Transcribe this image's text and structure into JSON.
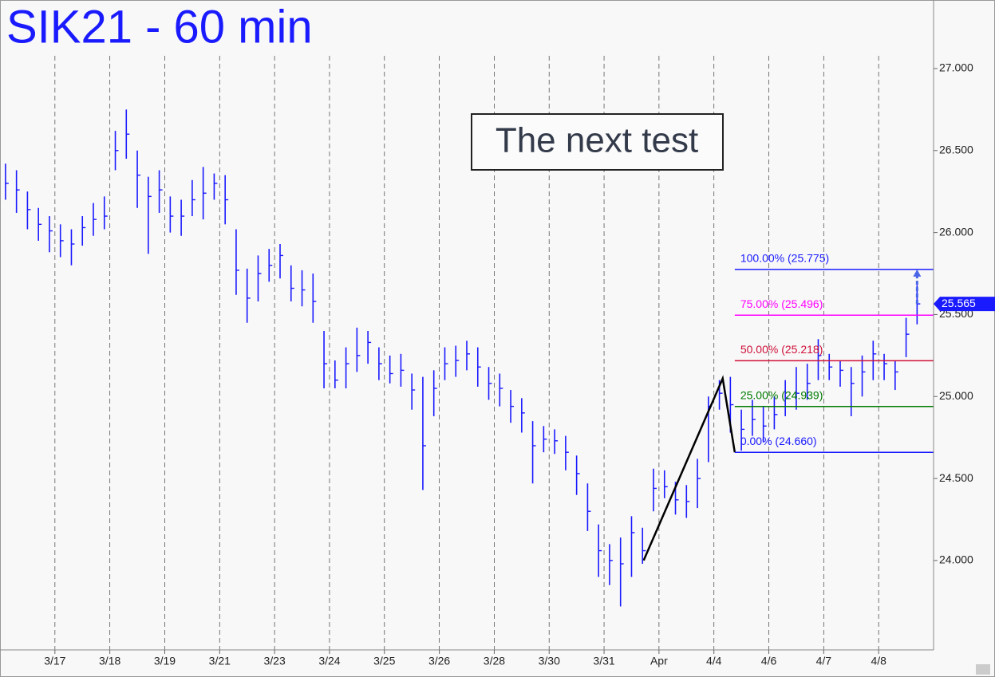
{
  "chart_data": {
    "type": "ohlc",
    "title": "SIK21 - 60 min",
    "annotation": "The next test",
    "color": "#1a1aff",
    "grid": "x",
    "xlim": [
      0,
      85
    ],
    "xticks": [
      {
        "value": 5,
        "label": "3/17"
      },
      {
        "value": 10,
        "label": "3/18"
      },
      {
        "value": 15,
        "label": "3/19"
      },
      {
        "value": 20,
        "label": "3/21"
      },
      {
        "value": 25,
        "label": "3/23"
      },
      {
        "value": 30,
        "label": "3/24"
      },
      {
        "value": 35,
        "label": "3/25"
      },
      {
        "value": 40,
        "label": "3/26"
      },
      {
        "value": 45,
        "label": "3/28"
      },
      {
        "value": 50,
        "label": "3/30"
      },
      {
        "value": 55,
        "label": "3/31"
      },
      {
        "value": 60,
        "label": "Apr"
      },
      {
        "value": 65,
        "label": "4/4"
      },
      {
        "value": 70,
        "label": "4/6"
      },
      {
        "value": 75,
        "label": "4/7"
      },
      {
        "value": 80,
        "label": "4/8"
      }
    ],
    "ylim": [
      23.455,
      27.418
    ],
    "yticks": [
      {
        "value": 24,
        "label": "24.000"
      },
      {
        "value": 24.5,
        "label": "24.500"
      },
      {
        "value": 25,
        "label": "25.000"
      },
      {
        "value": 25.5,
        "label": "25.500"
      },
      {
        "value": 26,
        "label": "26.000"
      },
      {
        "value": 26.5,
        "label": "26.500"
      },
      {
        "value": 27,
        "label": "27.000"
      }
    ],
    "close": [
      26.3,
      26.26,
      26.14,
      26.05,
      26.01,
      25.95,
      25.93,
      26.03,
      26.08,
      26.1,
      26.5,
      26.6,
      26.35,
      26.22,
      26.26,
      26.1,
      26.1,
      26.2,
      26.24,
      26.3,
      26.2,
      25.77,
      25.6,
      25.75,
      25.8,
      25.86,
      25.66,
      25.65,
      25.58,
      25.2,
      25.1,
      25.2,
      25.25,
      25.33,
      25.2,
      25.14,
      25.16,
      25.04,
      24.7,
      25.05,
      25.2,
      25.22,
      25.26,
      25.18,
      25.08,
      25.05,
      24.94,
      24.9,
      24.7,
      24.74,
      24.73,
      24.66,
      24.53,
      24.3,
      24.06,
      24.0,
      23.98,
      24.17,
      24.06,
      24.44,
      24.45,
      24.37,
      24.36,
      24.5,
      24.94,
      25.02,
      24.95,
      24.8,
      24.86,
      24.82,
      24.89,
      24.99,
      25.02,
      25.08,
      25.25,
      25.18,
      25.16,
      25.08,
      25.15,
      25.26,
      25.2,
      25.15,
      25.38,
      25.565
    ],
    "high": [
      26.42,
      26.38,
      26.25,
      26.15,
      26.1,
      26.05,
      26.02,
      26.1,
      26.18,
      26.22,
      26.62,
      26.75,
      26.5,
      26.34,
      26.38,
      26.22,
      26.2,
      26.32,
      26.4,
      26.36,
      26.35,
      26.02,
      25.78,
      25.86,
      25.9,
      25.93,
      25.8,
      25.77,
      25.75,
      25.4,
      25.22,
      25.3,
      25.42,
      25.4,
      25.3,
      25.25,
      25.26,
      25.14,
      25.12,
      25.16,
      25.3,
      25.31,
      25.34,
      25.3,
      25.18,
      25.14,
      25.04,
      24.99,
      24.85,
      24.82,
      24.8,
      24.76,
      24.64,
      24.47,
      24.22,
      24.1,
      24.14,
      24.27,
      24.2,
      24.56,
      24.55,
      24.48,
      24.46,
      24.62,
      25.0,
      25.1,
      25.12,
      24.92,
      24.98,
      24.94,
      25.0,
      25.1,
      25.18,
      25.2,
      25.35,
      25.26,
      25.22,
      25.18,
      25.25,
      25.34,
      25.26,
      25.22,
      25.48,
      25.68
    ],
    "low": [
      26.2,
      26.12,
      26.02,
      25.95,
      25.88,
      25.85,
      25.8,
      25.92,
      25.98,
      26.02,
      26.38,
      26.45,
      26.15,
      25.87,
      26.12,
      26.0,
      25.98,
      26.1,
      26.08,
      26.2,
      26.05,
      25.62,
      25.45,
      25.58,
      25.7,
      25.72,
      25.58,
      25.55,
      25.45,
      25.05,
      25.05,
      25.05,
      25.15,
      25.2,
      25.1,
      25.08,
      25.06,
      24.92,
      24.43,
      24.88,
      25.1,
      25.12,
      25.16,
      25.06,
      24.98,
      24.94,
      24.84,
      24.78,
      24.47,
      24.66,
      24.65,
      24.55,
      24.4,
      24.18,
      23.9,
      23.85,
      23.72,
      23.9,
      23.98,
      24.3,
      24.38,
      24.28,
      24.26,
      24.32,
      24.6,
      24.92,
      24.78,
      24.67,
      24.76,
      24.72,
      24.8,
      24.88,
      24.92,
      24.98,
      25.1,
      25.1,
      25.06,
      24.88,
      25.0,
      25.1,
      25.1,
      25.04,
      25.24,
      25.44
    ],
    "pattern": {
      "x": [
        58.6,
        65.8,
        66.9
      ],
      "y": [
        24.0,
        25.11,
        24.66
      ],
      "color": "#000000"
    },
    "fib_levels": [
      {
        "label": "100.00% (25.775)",
        "value": 25.775,
        "color": "#1a1aff"
      },
      {
        "label": "75.00% (25.496)",
        "value": 25.496,
        "color": "#ff00ff"
      },
      {
        "label": "50.00% (25.218)",
        "value": 25.218,
        "color": "#d0103a"
      },
      {
        "label": "25.00% (24.939)",
        "value": 24.939,
        "color": "#007a00"
      },
      {
        "label": "0.00% (24.660)",
        "value": 24.66,
        "color": "#1a1aff"
      }
    ]
  }
}
